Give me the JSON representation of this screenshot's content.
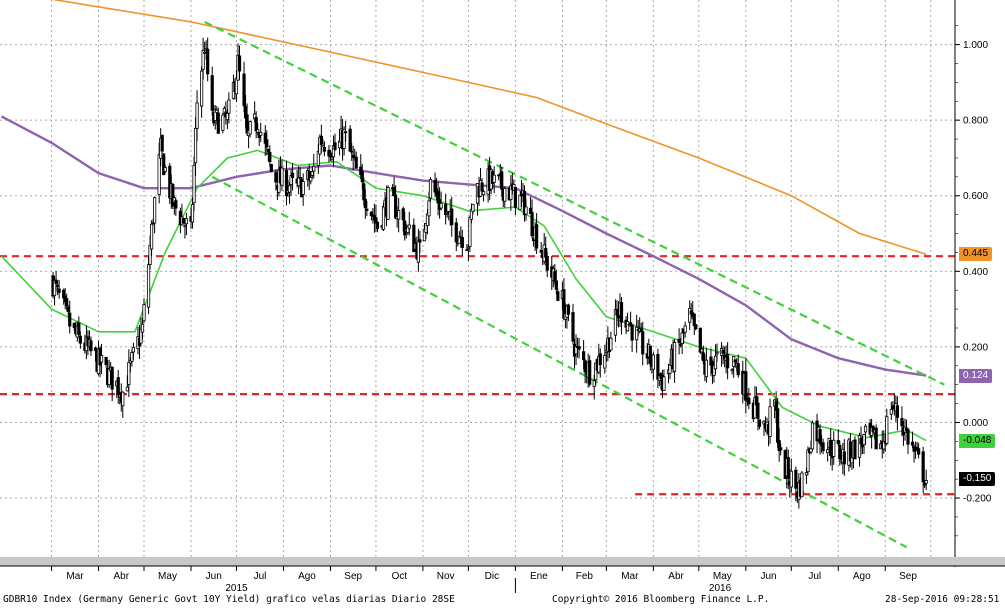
{
  "chart_data": {
    "type": "candlestick",
    "security": "GDBR10 Index (Germany Generic Govt 10Y Yield) grafico velas diarias  Diario 28SE",
    "copyright": "Copyright© 2016 Bloomberg Finance L.P.",
    "timestamp": "28-Sep-2016 09:28:51",
    "x_tick_labels": [
      "Mar",
      "Abr",
      "May",
      "Jun",
      "Jul",
      "Ago",
      "Sep",
      "Oct",
      "Nov",
      "Dic",
      "Ene",
      "Feb",
      "Mar",
      "Abr",
      "May",
      "Jun",
      "Jul",
      "Ago",
      "Sep"
    ],
    "year_labels": [
      "2015",
      "2016"
    ],
    "y_ticks": [
      "1.000",
      "0.800",
      "0.600",
      "0.400",
      "0.200",
      "0.000",
      "-0.200"
    ],
    "ylim": [
      -0.36,
      1.1
    ],
    "price_points": [
      [
        "2015-03-01",
        0.38
      ],
      [
        "2015-03-15",
        0.24
      ],
      [
        "2015-04-01",
        0.16
      ],
      [
        "2015-04-17",
        0.08
      ],
      [
        "2015-04-30",
        0.25
      ],
      [
        "2015-05-07",
        0.55
      ],
      [
        "2015-05-12",
        0.72
      ],
      [
        "2015-05-20",
        0.58
      ],
      [
        "2015-06-01",
        0.5
      ],
      [
        "2015-06-05",
        0.85
      ],
      [
        "2015-06-10",
        1.0
      ],
      [
        "2015-06-15",
        0.8
      ],
      [
        "2015-06-25",
        0.8
      ],
      [
        "2015-07-02",
        0.95
      ],
      [
        "2015-07-08",
        0.75
      ],
      [
        "2015-07-15",
        0.8
      ],
      [
        "2015-07-25",
        0.65
      ],
      [
        "2015-08-10",
        0.62
      ],
      [
        "2015-08-20",
        0.65
      ],
      [
        "2015-08-25",
        0.75
      ],
      [
        "2015-09-05",
        0.72
      ],
      [
        "2015-09-10",
        0.76
      ],
      [
        "2015-09-20",
        0.64
      ],
      [
        "2015-10-02",
        0.52
      ],
      [
        "2015-10-10",
        0.6
      ],
      [
        "2015-10-20",
        0.52
      ],
      [
        "2015-10-30",
        0.45
      ],
      [
        "2015-11-06",
        0.63
      ],
      [
        "2015-11-20",
        0.52
      ],
      [
        "2015-12-01",
        0.48
      ],
      [
        "2015-12-05",
        0.62
      ],
      [
        "2015-12-15",
        0.64
      ],
      [
        "2015-12-25",
        0.62
      ],
      [
        "2016-01-07",
        0.58
      ],
      [
        "2016-01-20",
        0.44
      ],
      [
        "2016-02-01",
        0.32
      ],
      [
        "2016-02-10",
        0.19
      ],
      [
        "2016-02-20",
        0.13
      ],
      [
        "2016-03-01",
        0.2
      ],
      [
        "2016-03-10",
        0.3
      ],
      [
        "2016-03-15",
        0.27
      ],
      [
        "2016-03-25",
        0.2
      ],
      [
        "2016-04-07",
        0.11
      ],
      [
        "2016-04-20",
        0.22
      ],
      [
        "2016-04-25",
        0.28
      ],
      [
        "2016-05-05",
        0.14
      ],
      [
        "2016-05-15",
        0.17
      ],
      [
        "2016-05-25",
        0.16
      ],
      [
        "2016-06-05",
        0.05
      ],
      [
        "2016-06-15",
        -0.02
      ],
      [
        "2016-06-20",
        0.05
      ],
      [
        "2016-06-24",
        -0.1
      ],
      [
        "2016-07-05",
        -0.18
      ],
      [
        "2016-07-10",
        -0.14
      ],
      [
        "2016-07-15",
        -0.01
      ],
      [
        "2016-07-25",
        -0.06
      ],
      [
        "2016-08-05",
        -0.09
      ],
      [
        "2016-08-20",
        -0.04
      ],
      [
        "2016-08-30",
        -0.06
      ],
      [
        "2016-09-05",
        0.05
      ],
      [
        "2016-09-12",
        0.0
      ],
      [
        "2016-09-20",
        -0.08
      ],
      [
        "2016-09-28",
        -0.15
      ]
    ],
    "series": [
      {
        "name": "",
        "color": "#F0932A",
        "points": [
          [
            "2015-01-25",
            1.14
          ],
          [
            "2015-03-01",
            1.12
          ],
          [
            "2015-06-01",
            1.06
          ],
          [
            "2015-09-01",
            0.98
          ],
          [
            "2015-12-01",
            0.9
          ],
          [
            "2016-01-15",
            0.86
          ],
          [
            "2016-03-01",
            0.79
          ],
          [
            "2016-05-01",
            0.7
          ],
          [
            "2016-07-01",
            0.6
          ],
          [
            "2016-08-15",
            0.5
          ],
          [
            "2016-09-28",
            0.445
          ]
        ]
      },
      {
        "name": "",
        "color": "#8E63B0",
        "points": [
          [
            "2015-01-27",
            0.81
          ],
          [
            "2015-03-01",
            0.74
          ],
          [
            "2015-04-01",
            0.66
          ],
          [
            "2015-05-01",
            0.62
          ],
          [
            "2015-06-01",
            0.62
          ],
          [
            "2015-07-01",
            0.65
          ],
          [
            "2015-08-01",
            0.67
          ],
          [
            "2015-09-01",
            0.68
          ],
          [
            "2015-10-01",
            0.66
          ],
          [
            "2015-11-01",
            0.64
          ],
          [
            "2015-12-01",
            0.63
          ],
          [
            "2016-01-01",
            0.62
          ],
          [
            "2016-02-01",
            0.56
          ],
          [
            "2016-03-01",
            0.5
          ],
          [
            "2016-04-01",
            0.44
          ],
          [
            "2016-05-01",
            0.38
          ],
          [
            "2016-06-01",
            0.31
          ],
          [
            "2016-07-01",
            0.22
          ],
          [
            "2016-08-01",
            0.17
          ],
          [
            "2016-09-01",
            0.14
          ],
          [
            "2016-09-28",
            0.124
          ]
        ]
      },
      {
        "name": "",
        "color": "#41D13C",
        "points": [
          [
            "2015-01-27",
            0.44
          ],
          [
            "2015-03-01",
            0.3
          ],
          [
            "2015-04-01",
            0.24
          ],
          [
            "2015-04-25",
            0.24
          ],
          [
            "2015-05-15",
            0.45
          ],
          [
            "2015-06-05",
            0.62
          ],
          [
            "2015-06-25",
            0.7
          ],
          [
            "2015-07-15",
            0.72
          ],
          [
            "2015-08-10",
            0.68
          ],
          [
            "2015-09-05",
            0.69
          ],
          [
            "2015-10-01",
            0.62
          ],
          [
            "2015-11-01",
            0.6
          ],
          [
            "2015-12-01",
            0.56
          ],
          [
            "2016-01-01",
            0.57
          ],
          [
            "2016-01-20",
            0.52
          ],
          [
            "2016-02-10",
            0.38
          ],
          [
            "2016-03-01",
            0.28
          ],
          [
            "2016-04-01",
            0.24
          ],
          [
            "2016-05-01",
            0.2
          ],
          [
            "2016-06-01",
            0.17
          ],
          [
            "2016-06-25",
            0.04
          ],
          [
            "2016-07-20",
            -0.01
          ],
          [
            "2016-08-20",
            -0.04
          ],
          [
            "2016-09-15",
            -0.02
          ],
          [
            "2016-09-28",
            -0.048
          ]
        ]
      }
    ],
    "annotations": {
      "horizontal_lines": [
        {
          "y": 0.44,
          "color": "#E0252A",
          "style": "dashed"
        },
        {
          "y": 0.075,
          "color": "#E0252A",
          "style": "dashed"
        },
        {
          "y": -0.19,
          "color": "#E0252A",
          "style": "dashed",
          "from": "2016-03-20"
        }
      ],
      "trend_lines": [
        {
          "from": [
            "2015-06-10",
            1.06
          ],
          "to": [
            "2016-10-10",
            0.1
          ],
          "color": "#41D13C",
          "style": "dashed"
        },
        {
          "from": [
            "2015-06-15",
            0.65
          ],
          "to": [
            "2016-09-15",
            -0.33
          ],
          "color": "#41D13C",
          "style": "dashed"
        }
      ]
    },
    "value_labels": [
      {
        "text": "0.445",
        "value": 0.445,
        "color": "#F0932A",
        "text_color": "#000000"
      },
      {
        "text": "0.124",
        "value": 0.124,
        "color": "#8E63B0",
        "text_color": "#ffffff"
      },
      {
        "text": "-0.048",
        "value": -0.048,
        "color": "#41D13C",
        "text_color": "#000000"
      },
      {
        "text": "-0.150",
        "value": -0.15,
        "color": "#000000",
        "text_color": "#ffffff"
      }
    ]
  }
}
